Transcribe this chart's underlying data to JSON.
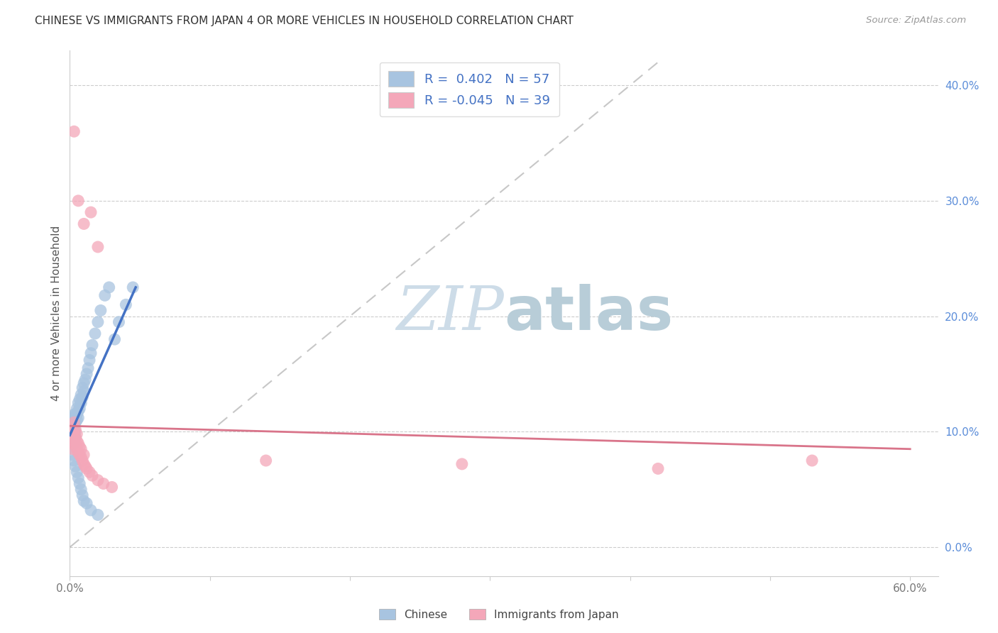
{
  "title": "CHINESE VS IMMIGRANTS FROM JAPAN 4 OR MORE VEHICLES IN HOUSEHOLD CORRELATION CHART",
  "source": "Source: ZipAtlas.com",
  "ylabel": "4 or more Vehicles in Household",
  "xlim": [
    0.0,
    0.62
  ],
  "ylim": [
    -0.025,
    0.43
  ],
  "x_ticks": [
    0.0,
    0.1,
    0.2,
    0.3,
    0.4,
    0.5,
    0.6
  ],
  "y_ticks": [
    0.0,
    0.1,
    0.2,
    0.3,
    0.4
  ],
  "x_tick_labels": [
    "0.0%",
    "",
    "",
    "",
    "",
    "",
    "60.0%"
  ],
  "y_tick_labels": [
    "",
    "",
    "",
    "",
    ""
  ],
  "y_tick_labels_right": [
    "0.0%",
    "10.0%",
    "20.0%",
    "30.0%",
    "40.0%"
  ],
  "chinese_color": "#a8c4e0",
  "japan_color": "#f4a7b9",
  "chinese_line_color": "#4472c4",
  "japan_line_color": "#d9748a",
  "r_chinese": 0.402,
  "n_chinese": 57,
  "r_japan": -0.045,
  "n_japan": 39,
  "watermark_zip_color": "#cddce8",
  "watermark_atlas_color": "#b8cdd8",
  "legend_text_color": "#4472c4",
  "title_color": "#333333",
  "source_color": "#999999",
  "ytick_right_color": "#5b8dd9",
  "xtick_color": "#777777",
  "ylabel_color": "#555555",
  "grid_color": "#cccccc",
  "background_color": "#ffffff",
  "chinese_x": [
    0.001,
    0.001,
    0.001,
    0.002,
    0.002,
    0.002,
    0.002,
    0.003,
    0.003,
    0.003,
    0.003,
    0.003,
    0.004,
    0.004,
    0.004,
    0.004,
    0.005,
    0.005,
    0.005,
    0.006,
    0.006,
    0.006,
    0.007,
    0.007,
    0.008,
    0.008,
    0.009,
    0.009,
    0.01,
    0.01,
    0.011,
    0.012,
    0.013,
    0.014,
    0.015,
    0.016,
    0.018,
    0.02,
    0.022,
    0.025,
    0.028,
    0.032,
    0.035,
    0.04,
    0.045,
    0.002,
    0.003,
    0.004,
    0.005,
    0.006,
    0.007,
    0.008,
    0.009,
    0.01,
    0.012,
    0.015,
    0.02
  ],
  "chinese_y": [
    0.095,
    0.1,
    0.11,
    0.105,
    0.108,
    0.112,
    0.095,
    0.1,
    0.105,
    0.108,
    0.115,
    0.09,
    0.1,
    0.108,
    0.115,
    0.095,
    0.11,
    0.115,
    0.12,
    0.112,
    0.118,
    0.125,
    0.12,
    0.128,
    0.125,
    0.132,
    0.13,
    0.138,
    0.135,
    0.142,
    0.145,
    0.15,
    0.155,
    0.162,
    0.168,
    0.175,
    0.185,
    0.195,
    0.205,
    0.218,
    0.225,
    0.18,
    0.195,
    0.21,
    0.225,
    0.08,
    0.075,
    0.07,
    0.065,
    0.06,
    0.055,
    0.05,
    0.045,
    0.04,
    0.038,
    0.032,
    0.028
  ],
  "japan_x": [
    0.001,
    0.001,
    0.002,
    0.002,
    0.002,
    0.003,
    0.003,
    0.003,
    0.004,
    0.004,
    0.004,
    0.005,
    0.005,
    0.005,
    0.006,
    0.006,
    0.007,
    0.007,
    0.008,
    0.008,
    0.009,
    0.01,
    0.01,
    0.011,
    0.012,
    0.014,
    0.016,
    0.02,
    0.024,
    0.03,
    0.14,
    0.28,
    0.42,
    0.53,
    0.003,
    0.006,
    0.01,
    0.015,
    0.02
  ],
  "japan_y": [
    0.09,
    0.095,
    0.085,
    0.1,
    0.105,
    0.092,
    0.098,
    0.108,
    0.088,
    0.095,
    0.102,
    0.085,
    0.092,
    0.098,
    0.082,
    0.09,
    0.08,
    0.087,
    0.078,
    0.085,
    0.075,
    0.072,
    0.08,
    0.07,
    0.068,
    0.065,
    0.062,
    0.058,
    0.055,
    0.052,
    0.075,
    0.072,
    0.068,
    0.075,
    0.36,
    0.3,
    0.28,
    0.29,
    0.26
  ]
}
